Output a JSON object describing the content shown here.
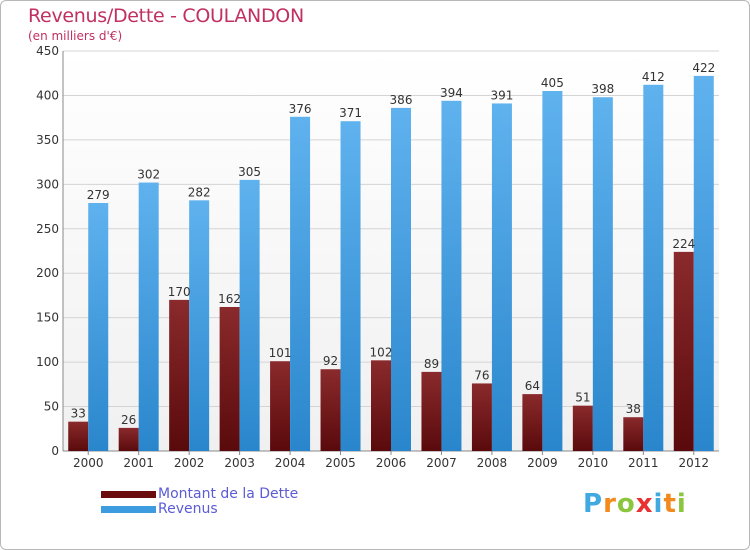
{
  "header": {
    "title": "Revenus/Dette - COULANDON",
    "subtitle": "(en milliers d'€)"
  },
  "logo": {
    "letters": [
      "P",
      "r",
      "o",
      "x",
      "i",
      "t",
      "i"
    ],
    "colors": [
      "#3fa9e0",
      "#f28a1e",
      "#8cc63f",
      "#e9312f",
      "#3fa9e0",
      "#f28a1e",
      "#8cc63f"
    ]
  },
  "chart_data": {
    "type": "bar",
    "title": "Revenus/Dette - COULANDON",
    "subtitle": "(en milliers d'€)",
    "categories": [
      "2000",
      "2001",
      "2002",
      "2003",
      "2004",
      "2005",
      "2006",
      "2007",
      "2008",
      "2009",
      "2010",
      "2011",
      "2012"
    ],
    "series": [
      {
        "name": "Montant de la Dette",
        "color": "#7a1416",
        "values": [
          33,
          26,
          170,
          162,
          101,
          92,
          102,
          89,
          76,
          64,
          51,
          38,
          224
        ]
      },
      {
        "name": "Revenus",
        "color": "#3d9be0",
        "values": [
          279,
          302,
          282,
          305,
          376,
          371,
          386,
          394,
          391,
          405,
          398,
          412,
          422
        ]
      }
    ],
    "ylim": [
      0,
      450
    ],
    "yticks": [
      0,
      50,
      100,
      150,
      200,
      250,
      300,
      350,
      400,
      450
    ],
    "grid": true,
    "legend": "bottom-left",
    "data_labels": true
  }
}
